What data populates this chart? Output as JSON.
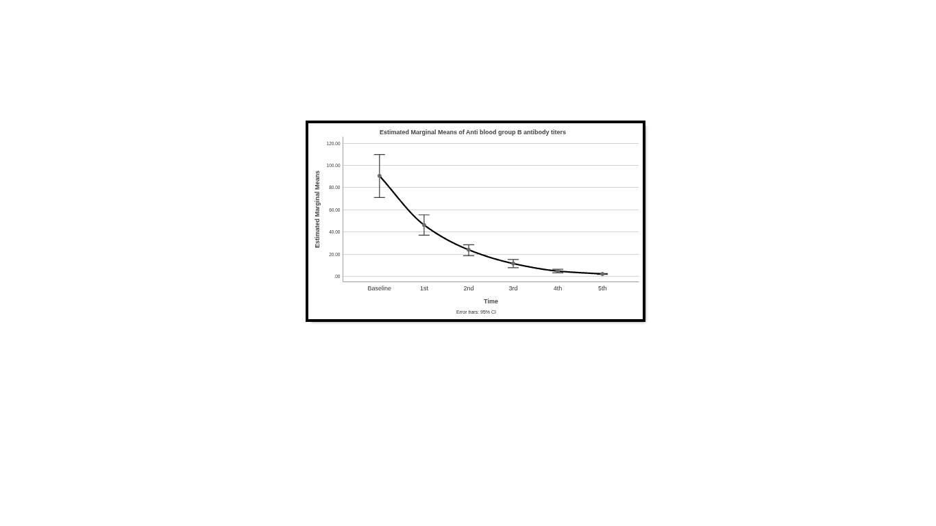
{
  "chart_data": {
    "type": "line",
    "title": "Estimated Marginal Means of Anti blood group B antibody titers",
    "xlabel": "Time",
    "ylabel": "Estimated Marginal Means",
    "annotations": [
      "Error bars: 95% CI"
    ],
    "categories": [
      "Baseline",
      "1st",
      "2nd",
      "3rd",
      "4th",
      "5th"
    ],
    "series": [
      {
        "color": "#000000",
        "values": [
          90.6,
          46.3,
          23.9,
          11.5,
          4.7,
          2.1
        ],
        "errors": [
          [
            71.1,
            109.8
          ],
          [
            37.1,
            55.4
          ],
          [
            18.5,
            28.4
          ],
          [
            7.8,
            15.2
          ],
          [
            3.1,
            6.4
          ],
          [
            1.7,
            2.5
          ]
        ]
      }
    ],
    "ylim": [
      -5,
      126
    ],
    "yticks": [
      {
        "value": 0,
        "label": ".00"
      },
      {
        "value": 20,
        "label": "20.00"
      },
      {
        "value": 40,
        "label": "40.00"
      },
      {
        "value": 60,
        "label": "60.00"
      },
      {
        "value": 80,
        "label": "80.00"
      },
      {
        "value": 100,
        "label": "100.00"
      },
      {
        "value": 120,
        "label": "120.00"
      }
    ],
    "grid": "y",
    "marker": "circle",
    "line_style": "solid"
  }
}
